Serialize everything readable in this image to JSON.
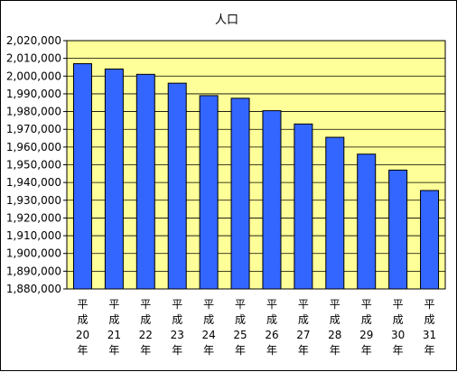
{
  "chart_data": {
    "type": "bar",
    "title": "人口",
    "xlabel": "",
    "ylabel": "",
    "ylim": [
      1880000,
      2020000
    ],
    "y_tick_step": 10000,
    "y_tick_labels": [
      "1,880,000",
      "1,890,000",
      "1,900,000",
      "1,910,000",
      "1,920,000",
      "1,930,000",
      "1,940,000",
      "1,950,000",
      "1,960,000",
      "1,970,000",
      "1,980,000",
      "1,990,000",
      "2,000,000",
      "2,010,000",
      "2,020,000"
    ],
    "categories": [
      [
        "平",
        "成",
        "20",
        "年"
      ],
      [
        "平",
        "成",
        "21",
        "年"
      ],
      [
        "平",
        "成",
        "22",
        "年"
      ],
      [
        "平",
        "成",
        "23",
        "年"
      ],
      [
        "平",
        "成",
        "24",
        "年"
      ],
      [
        "平",
        "成",
        "25",
        "年"
      ],
      [
        "平",
        "成",
        "26",
        "年"
      ],
      [
        "平",
        "成",
        "27",
        "年"
      ],
      [
        "平",
        "成",
        "28",
        "年"
      ],
      [
        "平",
        "成",
        "29",
        "年"
      ],
      [
        "平",
        "成",
        "30",
        "年"
      ],
      [
        "平",
        "成",
        "31",
        "年"
      ]
    ],
    "values": [
      2007000,
      2004000,
      2001000,
      1996000,
      1989000,
      1987500,
      1980500,
      1973000,
      1965500,
      1956000,
      1947000,
      1935500
    ],
    "grid": true,
    "legend": "none",
    "colors": {
      "bar": "#3366ff",
      "bar_outline": "#000000",
      "plot_background": "#ffff99",
      "gridline": "#000000"
    }
  }
}
